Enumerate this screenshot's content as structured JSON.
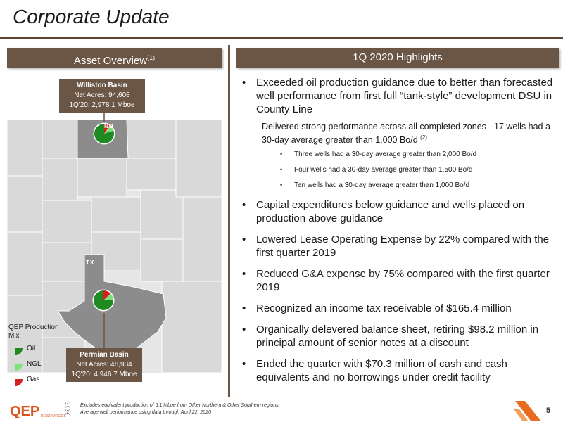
{
  "title": "Corporate Update",
  "left_header": {
    "label": "Asset Overview",
    "sup": "(1)"
  },
  "right_header": {
    "label": "1Q 2020 Highlights"
  },
  "williston": {
    "name": "Williston Basin",
    "acres": "Net Acres: 94,608",
    "production": "1Q'20: 2,978.1 Mboe",
    "state": "ND",
    "mix": {
      "oil": 0.8,
      "ngl": 0.1,
      "gas": 0.1
    }
  },
  "permian": {
    "name": "Permian Basin",
    "acres": "Net Acres: 48,934",
    "production": "1Q'20: 4,946.7 Mboe",
    "state": "TX",
    "mix": {
      "oil": 0.75,
      "ngl": 0.12,
      "gas": 0.13
    }
  },
  "legend": {
    "title": "QEP Production Mix",
    "items": [
      {
        "label": "Oil",
        "color": "#1f8a1f"
      },
      {
        "label": "NGL",
        "color": "#7ee07e"
      },
      {
        "label": "Gas",
        "color": "#d42020"
      }
    ]
  },
  "highlights": {
    "b1": "Exceeded oil production guidance due to better than forecasted well performance from first full “tank-style” development DSU in County Line",
    "b1_sub": "Delivered strong performance across all completed zones - 17 wells had a 30-day average greater than 1,000 Bo/d",
    "b1_sub_sup": "(2)",
    "b1_subsub": [
      "Three wells had a 30-day average greater than 2,000 Bo/d",
      "Four wells had a 30-day average greater than 1,500 Bo/d",
      "Ten wells had a 30-day average greater than 1,000 Bo/d"
    ],
    "b2": "Capital expenditures below guidance and wells placed on production above guidance",
    "b3": "Lowered Lease Operating Expense by 22% compared with the first quarter 2019",
    "b4": "Reduced G&A expense by 75% compared with the first quarter 2019",
    "b5": "Recognized an income tax receivable of $165.4 million",
    "b6": "Organically delevered balance sheet, retiring $98.2 million in principal amount of senior notes at a discount",
    "b7": "Ended the quarter with $70.3 million of cash and cash equivalents and no borrowings under credit facility"
  },
  "footnotes": [
    {
      "num": "(1)",
      "text": "Excludes equivalent production of 6.1 Mboe from Other Northern & Other Southern regions."
    },
    {
      "num": "(2)",
      "text": "Average well performance using data through April 22, 2020"
    }
  ],
  "logo": {
    "main": "QEP",
    "sub": "RESOURCES"
  },
  "page_number": "5",
  "colors": {
    "brand_brown": "#6b5544",
    "brand_orange": "#d9541e",
    "map_gray": "#d9d9d9",
    "state_highlight": "#8c8c8c"
  }
}
